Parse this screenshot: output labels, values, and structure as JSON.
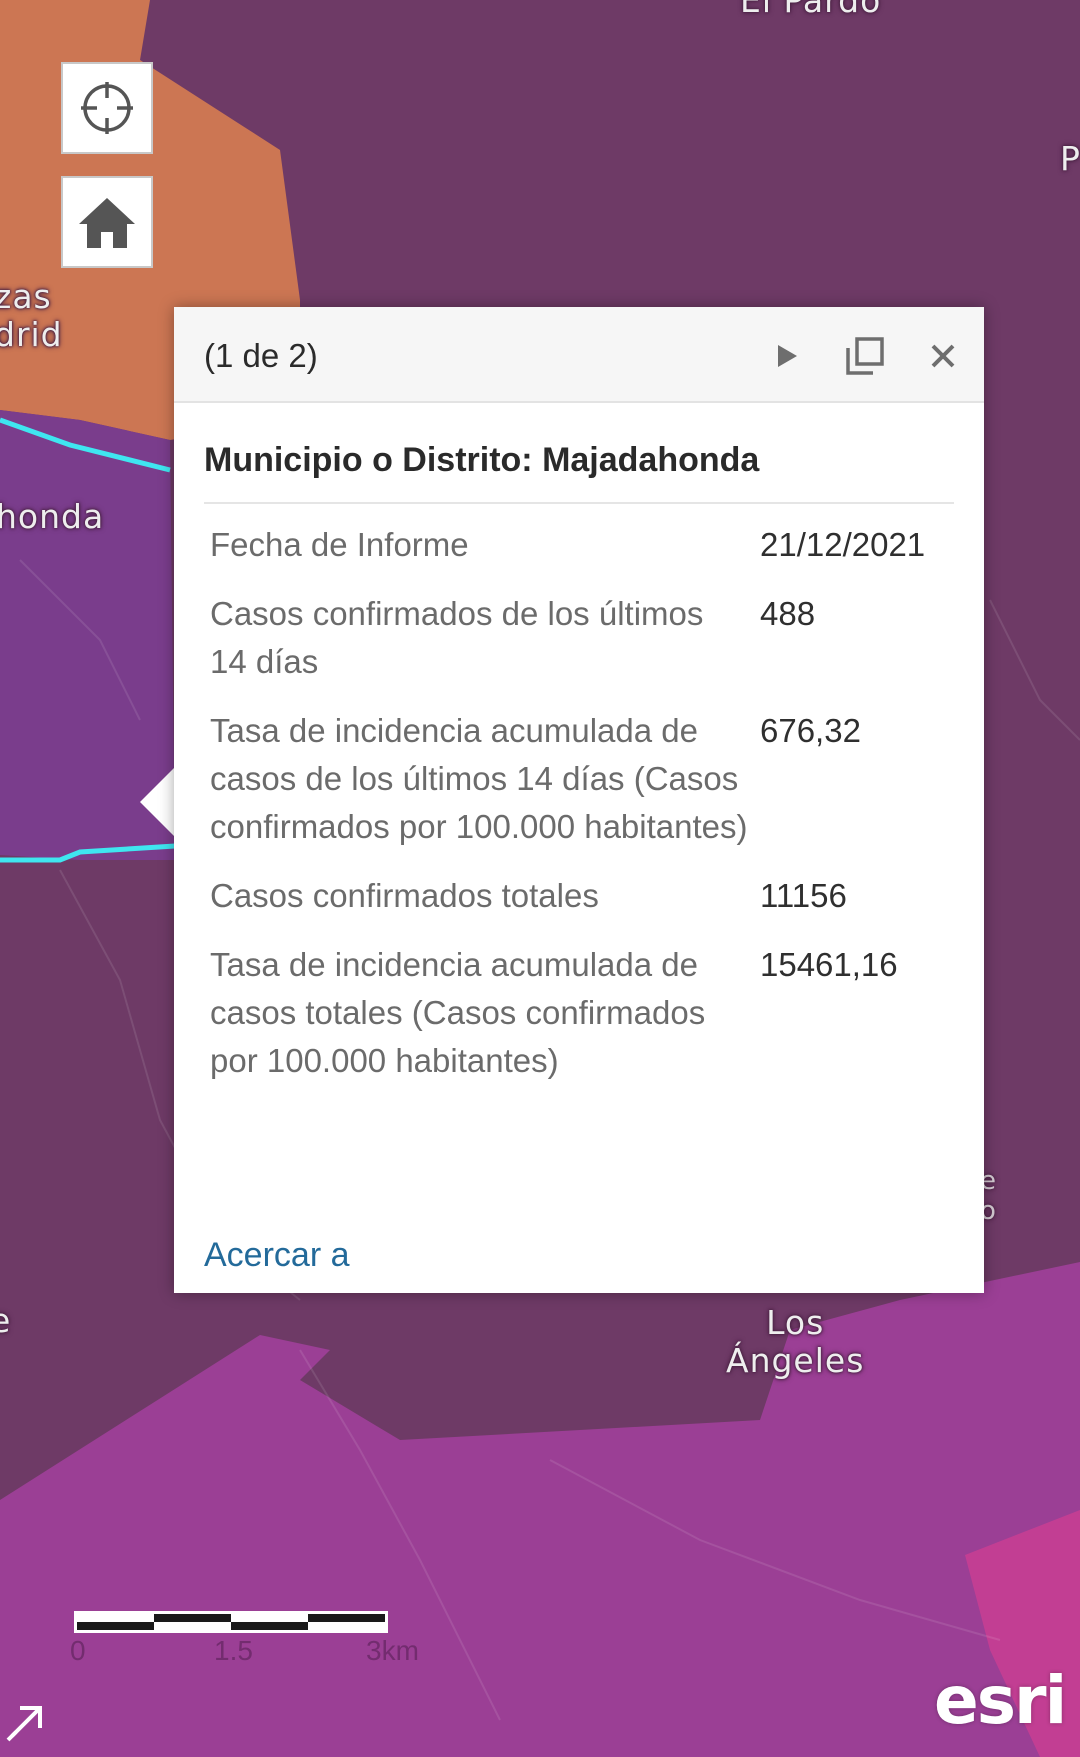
{
  "map": {
    "labels": {
      "top_partial": "El Pardo",
      "right_partial": "P",
      "zas_madrid": "zas\ndrid",
      "majadahonda_partial": "honda",
      "left_partial_e": "e",
      "right_partial_eo": "e\no",
      "los_angeles": "Los\nÁngeles"
    },
    "colors": {
      "dark_plum": "#6e3a66",
      "orange": "#cc7653",
      "selected_purple": "#7a3d8c",
      "magenta": "#9b3f95",
      "pink": "#c23e93",
      "highlight_outline": "#3fe6f0"
    }
  },
  "controls": {
    "locate_icon": "crosshair-icon",
    "home_icon": "home-icon"
  },
  "popup": {
    "pager": "(1 de 2)",
    "title": "Municipio o Distrito: Majadahonda",
    "rows": [
      {
        "label": "Fecha de Informe",
        "value": "21/12/2021"
      },
      {
        "label": "Casos confirmados de los últimos 14 días",
        "value": "488"
      },
      {
        "label": "Tasa de incidencia acumulada de casos de los últimos 14 días (Casos confirmados por 100.000 habitantes)",
        "value": "676,32"
      },
      {
        "label": "Casos confirmados totales",
        "value": "11156"
      },
      {
        "label": "Tasa de incidencia acumulada de casos totales (Casos confirmados por 100.000 habitantes)",
        "value": "15461,16"
      }
    ],
    "zoom_link": "Acercar a"
  },
  "scalebar": {
    "ticks": [
      "0",
      "1.5",
      "3km"
    ]
  },
  "attribution": {
    "logo": "esri"
  }
}
